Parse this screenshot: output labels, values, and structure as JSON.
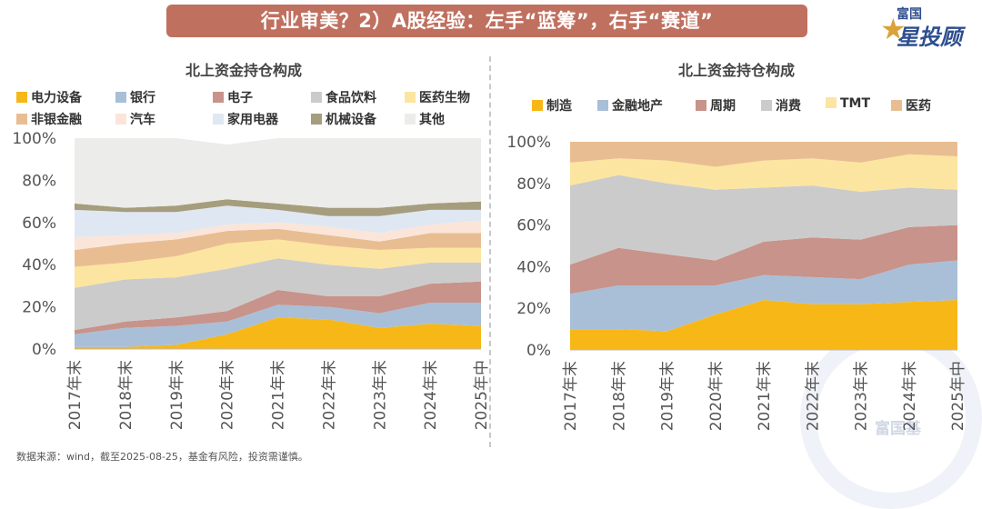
{
  "banner": {
    "title": "行业审美？2）A股经验：左手“蓝筹”，右手“赛道”"
  },
  "logo": {
    "line1": "富国",
    "line2": "星投顾",
    "star": "★"
  },
  "watermark": {
    "text": "富国基"
  },
  "source": "数据来源：wind，截至2025-08-25，基金有风险，投资需谨慎。",
  "chart_data": [
    {
      "type": "area",
      "stacked": true,
      "title": "北上资金持仓构成",
      "categories": [
        "2017年末",
        "2018年末",
        "2019年末",
        "2020年末",
        "2021年末",
        "2022年末",
        "2023年末",
        "2024年末",
        "2025年中"
      ],
      "ylim": [
        0,
        100
      ],
      "yticks": [
        "0%",
        "20%",
        "40%",
        "60%",
        "80%",
        "100%"
      ],
      "series": [
        {
          "name": "电力设备",
          "color": "#f7b717",
          "values": [
            1,
            1,
            2,
            7,
            15,
            14,
            10,
            12,
            11
          ]
        },
        {
          "name": "银行",
          "color": "#a9bfd7",
          "values": [
            6,
            9,
            9,
            6,
            6,
            6,
            7,
            10,
            11
          ]
        },
        {
          "name": "电子",
          "color": "#c7938a",
          "values": [
            2,
            3,
            4,
            5,
            7,
            5,
            8,
            9,
            10
          ]
        },
        {
          "name": "食品饮料",
          "color": "#cbcbcb",
          "values": [
            20,
            20,
            19,
            20,
            15,
            15,
            13,
            10,
            9
          ]
        },
        {
          "name": "医药生物",
          "color": "#fce5a0",
          "values": [
            10,
            8,
            10,
            12,
            9,
            9,
            9,
            7,
            7
          ]
        },
        {
          "name": "非银金融",
          "color": "#e9bd92",
          "values": [
            8,
            9,
            8,
            6,
            5,
            5,
            4,
            7,
            7
          ]
        },
        {
          "name": "汽车",
          "color": "#fbe5d9",
          "values": [
            6,
            4,
            3,
            3,
            3,
            4,
            4,
            4,
            6
          ]
        },
        {
          "name": "家用电器",
          "color": "#dfe7f2",
          "values": [
            13,
            11,
            10,
            9,
            6,
            5,
            8,
            7,
            5
          ]
        },
        {
          "name": "机械设备",
          "color": "#a59d7d",
          "values": [
            3,
            2,
            3,
            3,
            3,
            4,
            4,
            3,
            4
          ]
        },
        {
          "name": "其他",
          "color": "#ececea",
          "values": [
            31,
            33,
            32,
            26,
            31,
            33,
            33,
            31,
            30
          ]
        }
      ]
    },
    {
      "type": "area",
      "stacked": true,
      "title": "北上资金持仓构成",
      "categories": [
        "2017年末",
        "2018年末",
        "2019年末",
        "2020年末",
        "2021年末",
        "2022年末",
        "2023年末",
        "2024年末",
        "2025年中"
      ],
      "ylim": [
        0,
        100
      ],
      "yticks": [
        "0%",
        "20%",
        "40%",
        "60%",
        "80%",
        "100%"
      ],
      "series": [
        {
          "name": "制造",
          "color": "#f7b717",
          "values": [
            10,
            10,
            9,
            17,
            24,
            22,
            22,
            23,
            24
          ]
        },
        {
          "name": "金融地产",
          "color": "#a9bfd7",
          "values": [
            17,
            21,
            22,
            14,
            12,
            13,
            12,
            18,
            19
          ]
        },
        {
          "name": "周期",
          "color": "#c7938a",
          "values": [
            14,
            18,
            15,
            12,
            16,
            19,
            19,
            18,
            17
          ]
        },
        {
          "name": "消费",
          "color": "#cbcbcb",
          "values": [
            38,
            35,
            34,
            34,
            26,
            25,
            23,
            19,
            17
          ]
        },
        {
          "name": "TMT",
          "color": "#fce5a0",
          "values": [
            11,
            8,
            11,
            11,
            13,
            13,
            14,
            16,
            16
          ]
        },
        {
          "name": "医药",
          "color": "#e9bd92",
          "values": [
            10,
            8,
            9,
            12,
            9,
            8,
            10,
            6,
            7
          ]
        }
      ]
    }
  ]
}
